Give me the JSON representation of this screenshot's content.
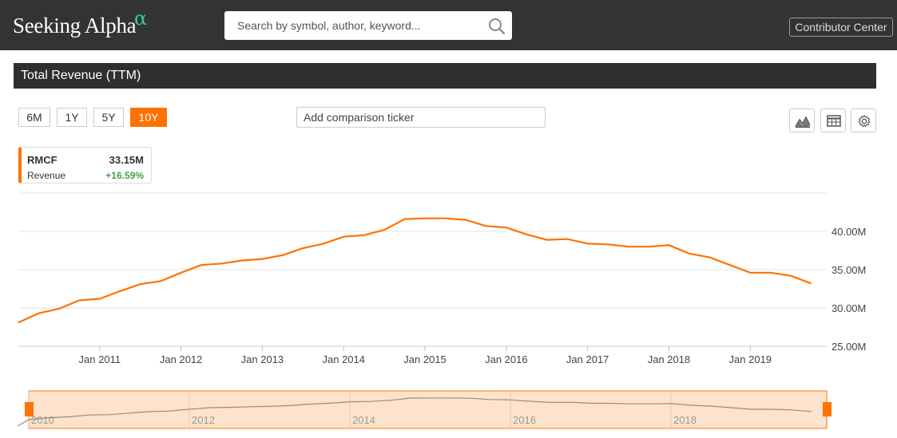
{
  "header": {
    "logo_text": "Seeking Alpha",
    "logo_alpha": "α",
    "search_placeholder": "Search by symbol, author, keyword...",
    "contributor_label": "Contributor Center"
  },
  "chart_title": "Total Revenue (TTM)",
  "ranges": [
    {
      "label": "6M",
      "active": false
    },
    {
      "label": "1Y",
      "active": false
    },
    {
      "label": "5Y",
      "active": false
    },
    {
      "label": "10Y",
      "active": true
    }
  ],
  "compare_placeholder": "Add comparison ticker",
  "tools": [
    "area-chart-icon",
    "table-icon",
    "gear-icon"
  ],
  "legend": {
    "ticker": "RMCF",
    "value": "33.15M",
    "label": "Revenue",
    "change": "+16.59%"
  },
  "colors": {
    "accent": "#ff7200",
    "header_bg": "#333333",
    "title_bg": "#2f2f2f",
    "positive": "#46a046",
    "navigator_fill": "#fde3cc"
  },
  "chart_data": {
    "type": "line",
    "title": "Total Revenue (TTM)",
    "series": [
      {
        "name": "RMCF",
        "x": [
          2010.0,
          2010.25,
          2010.5,
          2010.75,
          2011.0,
          2011.25,
          2011.5,
          2011.75,
          2012.0,
          2012.25,
          2012.5,
          2012.75,
          2013.0,
          2013.25,
          2013.5,
          2013.75,
          2014.0,
          2014.25,
          2014.5,
          2014.75,
          2015.0,
          2015.25,
          2015.5,
          2015.75,
          2016.0,
          2016.25,
          2016.5,
          2016.75,
          2017.0,
          2017.25,
          2017.5,
          2017.75,
          2018.0,
          2018.25,
          2018.5,
          2018.75,
          2019.0,
          2019.25,
          2019.5,
          2019.75
        ],
        "values": [
          28.1,
          29.3,
          29.9,
          31.0,
          31.2,
          32.2,
          33.1,
          33.5,
          34.6,
          35.6,
          35.8,
          36.2,
          36.4,
          36.9,
          37.8,
          38.4,
          39.3,
          39.5,
          40.2,
          41.6,
          41.7,
          41.7,
          41.5,
          40.7,
          40.5,
          39.6,
          38.9,
          39.0,
          38.4,
          38.3,
          38.0,
          38.0,
          38.2,
          37.1,
          36.6,
          35.6,
          34.6,
          34.6,
          34.2,
          33.2
        ]
      }
    ],
    "x_ticks": [
      "Jan 2011",
      "Jan 2012",
      "Jan 2013",
      "Jan 2014",
      "Jan 2015",
      "Jan 2016",
      "Jan 2017",
      "Jan 2018",
      "Jan 2019"
    ],
    "x_tick_values": [
      2011,
      2012,
      2013,
      2014,
      2015,
      2016,
      2017,
      2018,
      2019
    ],
    "y_ticks": [
      "25.00M",
      "30.00M",
      "35.00M",
      "40.00M"
    ],
    "y_tick_values": [
      25,
      30,
      35,
      40
    ],
    "xlim": [
      2010.0,
      2019.94
    ],
    "ylim": [
      25,
      45
    ],
    "grid": true,
    "y_axis_side": "right",
    "navigator": {
      "labels": [
        "2010",
        "2012",
        "2014",
        "2016",
        "2018"
      ],
      "label_values": [
        2010,
        2012,
        2014,
        2016,
        2018
      ]
    }
  }
}
